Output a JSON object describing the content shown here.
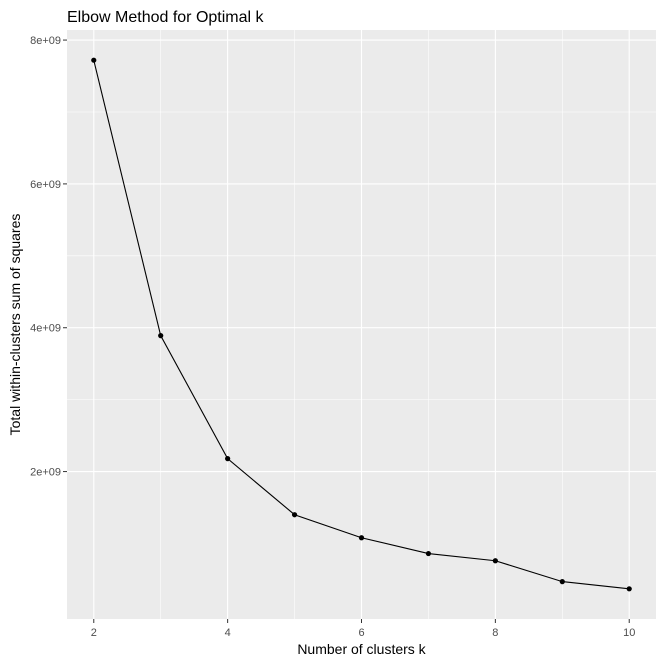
{
  "chart_data": {
    "type": "line",
    "title": "Elbow Method for Optimal k",
    "xlabel": "Number of clusters k",
    "ylabel": "Total within-clusters sum of squares",
    "x": [
      2,
      3,
      4,
      5,
      6,
      7,
      8,
      9,
      10
    ],
    "series": [
      {
        "values": [
          7720000000,
          3890000000,
          2180000000,
          1400000000,
          1080000000,
          860000000,
          760000000,
          470000000,
          370000000
        ]
      }
    ],
    "xlim": [
      1.6,
      10.4
    ],
    "ylim": [
      -50000000,
      8140000000
    ],
    "xticks": [
      2,
      4,
      6,
      8,
      10
    ],
    "xtick_labels": [
      "2",
      "4",
      "6",
      "8",
      "10"
    ],
    "yticks": [
      2000000000,
      4000000000,
      6000000000,
      8000000000
    ],
    "ytick_labels": [
      "2e+09",
      "4e+09",
      "6e+09",
      "8e+09"
    ],
    "xminor": [
      3,
      5,
      7,
      9
    ],
    "yminor": [
      3000000000,
      5000000000,
      7000000000
    ],
    "grid": true,
    "legend": "none",
    "colors": {
      "panel": "#ebebeb",
      "grid": "#ffffff",
      "line": "#000000",
      "tick_text": "#4d4d4d"
    }
  }
}
